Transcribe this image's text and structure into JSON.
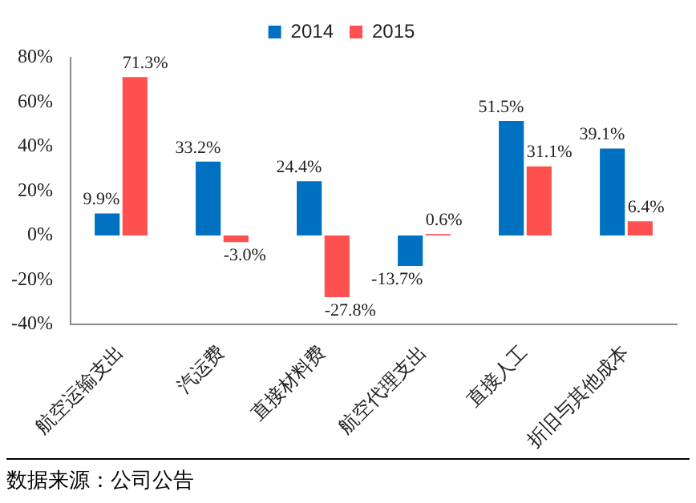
{
  "chart_data": {
    "type": "bar",
    "categories": [
      "航空运输支出",
      "汽运费",
      "直接材料费",
      "航空代理支出",
      "直接人工",
      "折旧与其他成本"
    ],
    "series": [
      {
        "name": "2014",
        "color": "#0070c0",
        "values": [
          9.9,
          33.2,
          24.4,
          -13.7,
          51.5,
          39.1
        ],
        "value_labels": [
          "9.9%",
          "33.2%",
          "24.4%",
          "-13.7%",
          "51.5%",
          "39.1%"
        ]
      },
      {
        "name": "2015",
        "color": "#ff5050",
        "values": [
          71.3,
          -3.0,
          -27.8,
          0.6,
          31.1,
          6.4
        ],
        "value_labels": [
          "71.3%",
          "-3.0%",
          "-27.8%",
          "0.6%",
          "31.1%",
          "6.4%"
        ]
      }
    ],
    "ylim": [
      -40,
      80
    ],
    "yticks": [
      {
        "value": -40,
        "label": "-40%"
      },
      {
        "value": -20,
        "label": "-20%"
      },
      {
        "value": 0,
        "label": "0%"
      },
      {
        "value": 20,
        "label": "20%"
      },
      {
        "value": 40,
        "label": "40%"
      },
      {
        "value": 60,
        "label": "60%"
      },
      {
        "value": 80,
        "label": "80%"
      }
    ],
    "grid": false,
    "legend": "top",
    "annotations": [
      "数据来源：公司公告"
    ]
  }
}
